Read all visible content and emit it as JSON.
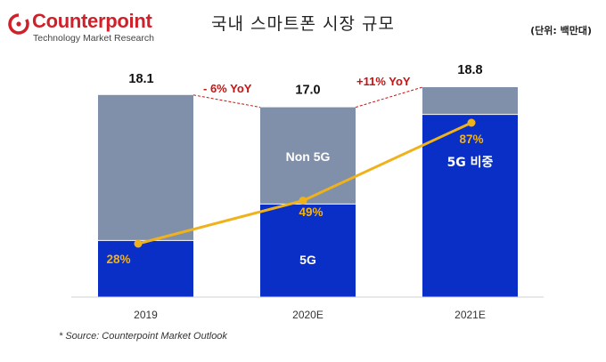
{
  "header": {
    "logo_name": "Counterpoint",
    "logo_tagline": "Technology Market Research",
    "title": "국내 스마트폰 시장 규모",
    "unit": "(단위: 백만대)"
  },
  "footer": {
    "source": "* Source: Counterpoint Market Outlook"
  },
  "colors": {
    "brand": "#d0202a",
    "five_g": "#0a2fc7",
    "non_5g": "#8090aa",
    "share_line": "#f0b21a",
    "yoy": "#cc1111"
  },
  "chart_data": {
    "type": "bar",
    "stacked": true,
    "categories": [
      "2019",
      "2020E",
      "2021E"
    ],
    "totals": [
      18.1,
      17.0,
      18.8
    ],
    "total_labels": [
      "18.1",
      "17.0",
      "18.8"
    ],
    "series": [
      {
        "name": "5G",
        "values": [
          5.07,
          8.33,
          16.36
        ]
      },
      {
        "name": "Non 5G",
        "values": [
          13.03,
          8.67,
          2.44
        ]
      }
    ],
    "five_g_share": [
      28,
      49,
      87
    ],
    "five_g_share_labels": [
      "28%",
      "49%",
      "87%"
    ],
    "segment_labels": {
      "non_5g": "Non 5G",
      "five_g": "5G",
      "five_g_share": "5G 비중"
    },
    "yoy": [
      {
        "from": "2019",
        "to": "2020E",
        "label": "- 6% YoY"
      },
      {
        "from": "2020E",
        "to": "2021E",
        "label": "+11% YoY"
      }
    ],
    "ylim": [
      0,
      18.8
    ],
    "grid": false,
    "legend": "none"
  }
}
